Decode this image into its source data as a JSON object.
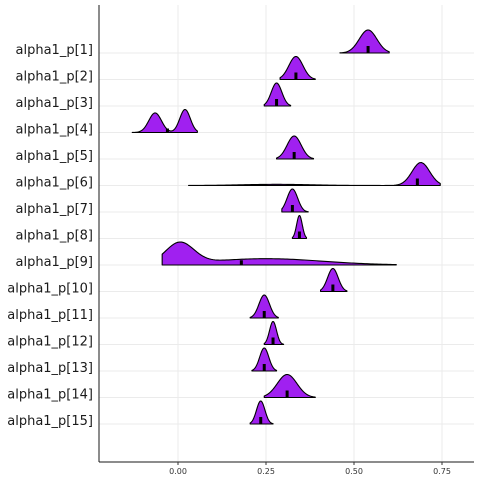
{
  "chart_data": {
    "type": "ridgeline",
    "title": "",
    "xlabel": "",
    "ylabel": "",
    "xlim": [
      -0.22,
      0.84
    ],
    "x_ticks": [
      {
        "value": 0,
        "label": "0.00"
      },
      {
        "value": 0.25,
        "label": "0.25"
      },
      {
        "value": 0.5,
        "label": "0.50"
      },
      {
        "value": 0.75,
        "label": "0.75"
      }
    ],
    "grid": true,
    "fill_color": "#a020f0",
    "outline_color": "#000000",
    "parameters": [
      {
        "label": "alpha1_p[1]",
        "median": 0.54,
        "range": [
          0.46,
          0.6
        ],
        "peaks": [
          {
            "mu": 0.54,
            "sd": 0.025,
            "w": 1
          }
        ]
      },
      {
        "label": "alpha1_p[2]",
        "median": 0.335,
        "range": [
          0.29,
          0.39
        ],
        "peaks": [
          {
            "mu": 0.335,
            "sd": 0.02,
            "w": 1
          }
        ]
      },
      {
        "label": "alpha1_p[3]",
        "median": 0.28,
        "range": [
          0.245,
          0.32
        ],
        "peaks": [
          {
            "mu": 0.28,
            "sd": 0.015,
            "w": 1
          }
        ]
      },
      {
        "label": "alpha1_p[4]",
        "median": -0.03,
        "range": [
          -0.13,
          0.055
        ],
        "peaks": [
          {
            "mu": -0.065,
            "sd": 0.018,
            "w": 0.85
          },
          {
            "mu": 0.02,
            "sd": 0.015,
            "w": 1
          }
        ]
      },
      {
        "label": "alpha1_p[5]",
        "median": 0.33,
        "range": [
          0.28,
          0.385
        ],
        "peaks": [
          {
            "mu": 0.33,
            "sd": 0.02,
            "w": 1
          }
        ]
      },
      {
        "label": "alpha1_p[6]",
        "median": 0.68,
        "range": [
          0.03,
          0.745
        ],
        "peaks": [
          {
            "mu": 0.69,
            "sd": 0.025,
            "w": 1
          },
          {
            "mu": 0.28,
            "sd": 0.1,
            "w": 0.05
          }
        ]
      },
      {
        "label": "alpha1_p[7]",
        "median": 0.325,
        "range": [
          0.295,
          0.37
        ],
        "peaks": [
          {
            "mu": 0.325,
            "sd": 0.015,
            "w": 1
          }
        ]
      },
      {
        "label": "alpha1_p[8]",
        "median": 0.345,
        "range": [
          0.325,
          0.365
        ],
        "peaks": [
          {
            "mu": 0.345,
            "sd": 0.008,
            "w": 1
          }
        ]
      },
      {
        "label": "alpha1_p[9]",
        "median": 0.18,
        "range": [
          -0.045,
          0.62
        ],
        "peaks": [
          {
            "mu": 0.005,
            "sd": 0.04,
            "w": 1
          },
          {
            "mu": 0.25,
            "sd": 0.16,
            "w": 0.3
          }
        ]
      },
      {
        "label": "alpha1_p[10]",
        "median": 0.44,
        "range": [
          0.405,
          0.48
        ],
        "peaks": [
          {
            "mu": 0.44,
            "sd": 0.015,
            "w": 1
          }
        ]
      },
      {
        "label": "alpha1_p[11]",
        "median": 0.245,
        "range": [
          0.205,
          0.285
        ],
        "peaks": [
          {
            "mu": 0.245,
            "sd": 0.015,
            "w": 1
          }
        ]
      },
      {
        "label": "alpha1_p[12]",
        "median": 0.27,
        "range": [
          0.245,
          0.3
        ],
        "peaks": [
          {
            "mu": 0.27,
            "sd": 0.01,
            "w": 1
          }
        ]
      },
      {
        "label": "alpha1_p[13]",
        "median": 0.245,
        "range": [
          0.21,
          0.28
        ],
        "peaks": [
          {
            "mu": 0.245,
            "sd": 0.013,
            "w": 1
          }
        ]
      },
      {
        "label": "alpha1_p[14]",
        "median": 0.31,
        "range": [
          0.245,
          0.39
        ],
        "peaks": [
          {
            "mu": 0.31,
            "sd": 0.028,
            "w": 1
          }
        ]
      },
      {
        "label": "alpha1_p[15]",
        "median": 0.235,
        "range": [
          0.205,
          0.27
        ],
        "peaks": [
          {
            "mu": 0.235,
            "sd": 0.012,
            "w": 1
          }
        ]
      }
    ]
  }
}
